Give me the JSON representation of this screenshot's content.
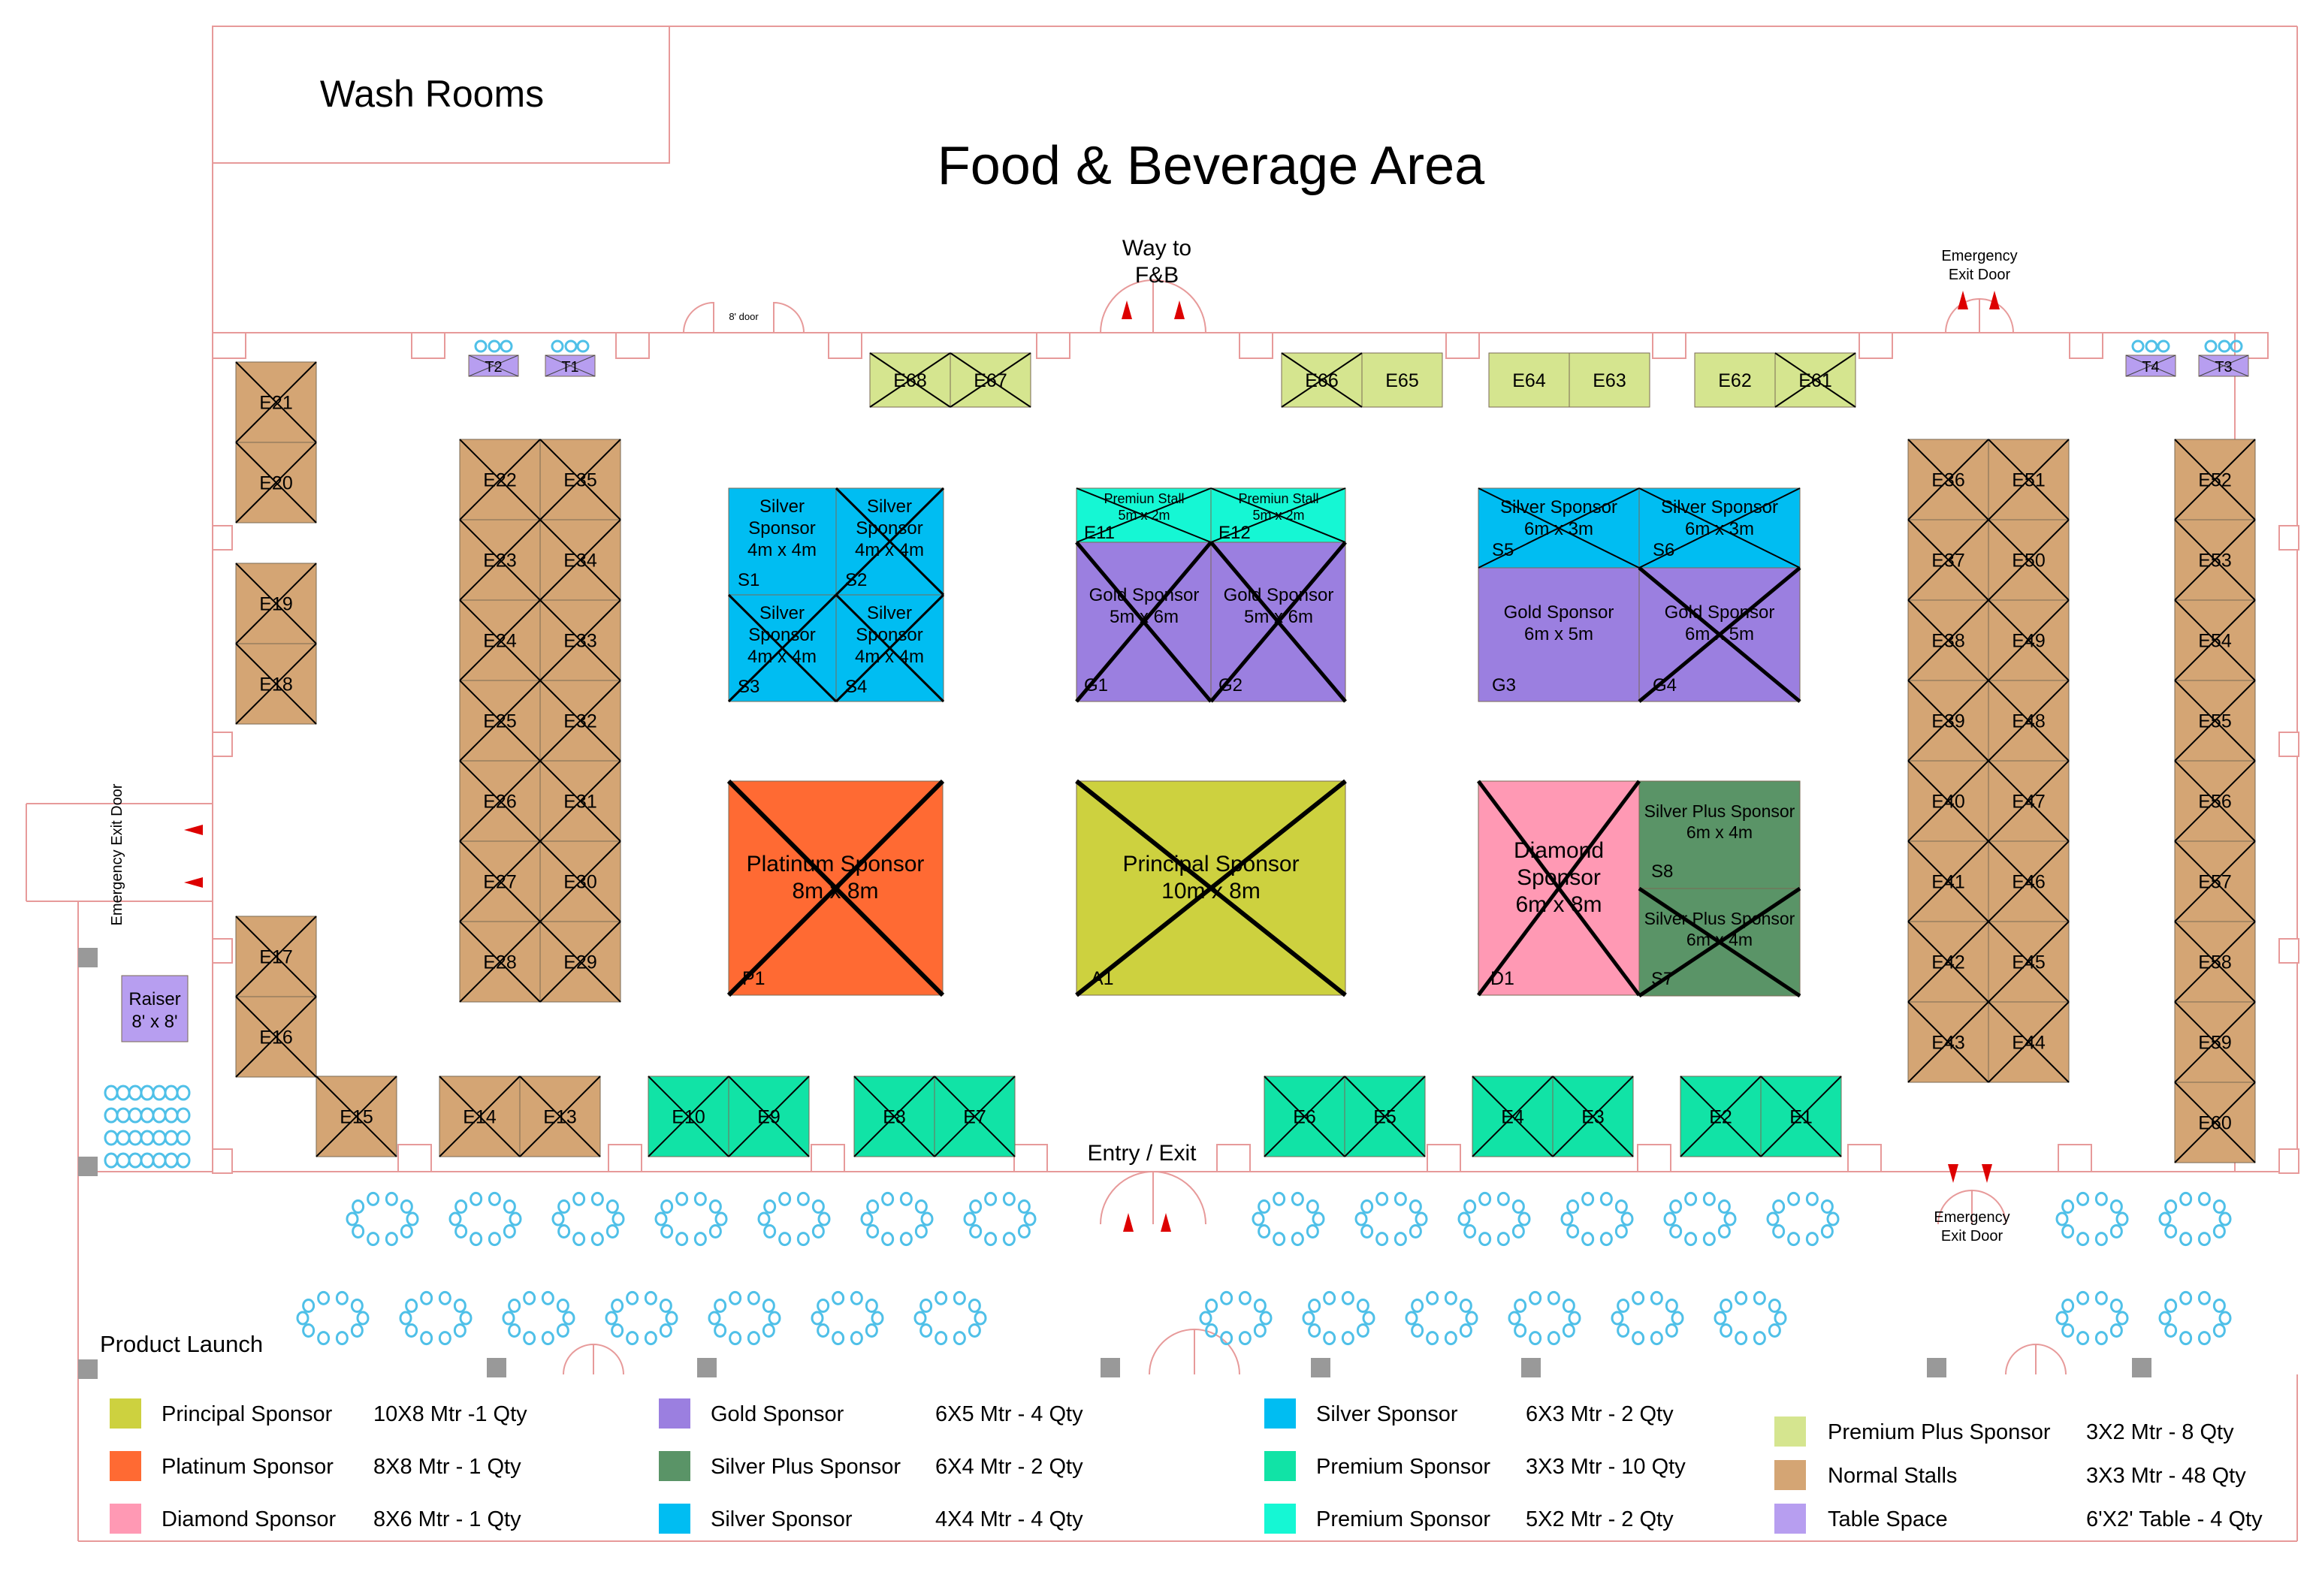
{
  "areas": {
    "washrooms": "Wash Rooms",
    "fnb_title": "Food & Beverage Area",
    "way_to": "Way to",
    "fnb_short": "F&B",
    "door_8ft": "8' door",
    "emergency": "Emergency",
    "exit_door": "Exit Door",
    "emergency_exit_door": "Emergency Exit Door",
    "entry_exit": "Entry / Exit",
    "raiser": "Raiser",
    "raiser_size": "8' x 8'",
    "product_launch": "Product Launch"
  },
  "colors": {
    "principal": "#cdd13f",
    "platinum": "#ff6a33",
    "diamond": "#ff99b4",
    "gold": "#9b7fe0",
    "silver_plus": "#5a9467",
    "silver": "#00bdf2",
    "premium_3x3": "#11e3a6",
    "premium_5x2": "#15f7d4",
    "premium_plus": "#d5e58f",
    "normal": "#d4a574",
    "table": "#b79ef0",
    "wall": "#e79a9a",
    "pillar": "#999999",
    "seat": "#4fc0e8"
  },
  "stalls": {
    "E1": "E1",
    "E2": "E2",
    "E3": "E3",
    "E4": "E4",
    "E5": "E5",
    "E6": "E6",
    "E7": "E7",
    "E8": "E8",
    "E9": "E9",
    "E10": "E10",
    "E11": "E11",
    "E12": "E12",
    "E13": "E13",
    "E14": "E14",
    "E15": "E15",
    "E16": "E16",
    "E17": "E17",
    "E18": "E18",
    "E19": "E19",
    "E20": "E20",
    "E21": "E21",
    "E22": "E22",
    "E23": "E23",
    "E24": "E24",
    "E25": "E25",
    "E26": "E26",
    "E27": "E27",
    "E28": "E28",
    "E29": "E29",
    "E30": "E30",
    "E31": "E31",
    "E32": "E32",
    "E33": "E33",
    "E34": "E34",
    "E35": "E35",
    "E36": "E36",
    "E37": "E37",
    "E38": "E38",
    "E39": "E39",
    "E40": "E40",
    "E41": "E41",
    "E42": "E42",
    "E43": "E43",
    "E44": "E44",
    "E45": "E45",
    "E46": "E46",
    "E47": "E47",
    "E48": "E48",
    "E49": "E49",
    "E50": "E50",
    "E51": "E51",
    "E52": "E52",
    "E53": "E53",
    "E54": "E54",
    "E55": "E55",
    "E56": "E56",
    "E57": "E57",
    "E58": "E58",
    "E59": "E59",
    "E60": "E60",
    "E61": "E61",
    "E62": "E62",
    "E63": "E63",
    "E64": "E64",
    "E65": "E65",
    "E66": "E66",
    "E67": "E67",
    "E68": "E68",
    "T1": "T1",
    "T2": "T2",
    "T3": "T3",
    "T4": "T4"
  },
  "booths": {
    "silver_title": "Silver",
    "sponsor_word": "Sponsor",
    "silver_4x4": "4m x 4m",
    "S1": "S1",
    "S2": "S2",
    "S3": "S3",
    "S4": "S4",
    "S5": "S5",
    "S6": "S6",
    "S7": "S7",
    "S8": "S8",
    "premium_stall": "Premiun Stall",
    "premium_size": "5m x 2m",
    "gold_sponsor": "Gold Sponsor",
    "gold_5x6": "5m x 6m",
    "gold_6x5": "6m x 5m",
    "G1": "G1",
    "G2": "G2",
    "G3": "G3",
    "G4": "G4",
    "silver_sponsor": "Silver Sponsor",
    "silver_6x3": "6m x 3m",
    "platinum_sponsor": "Platinum Sponsor",
    "platinum_size": "8m x 8m",
    "P1": "P1",
    "principal_sponsor": "Principal Sponsor",
    "principal_size": "10m x 8m",
    "A1": "A1",
    "diamond_word": "Diamond",
    "diamond_size": "6m x 8m",
    "D1": "D1",
    "silver_plus_sponsor": "Silver Plus Sponsor",
    "silver_plus_size": "6m x 4m"
  },
  "legend": [
    {
      "name": "Principal Sponsor",
      "spec": "10X8 Mtr -1 Qty",
      "color": "#cdd13f"
    },
    {
      "name": "Platinum Sponsor",
      "spec": "8X8 Mtr - 1 Qty",
      "color": "#ff6a33"
    },
    {
      "name": "Diamond Sponsor",
      "spec": "8X6 Mtr - 1 Qty",
      "color": "#ff99b4"
    },
    {
      "name": "Gold Sponsor",
      "spec": "6X5 Mtr - 4 Qty",
      "color": "#9b7fe0"
    },
    {
      "name": "Silver Plus Sponsor",
      "spec": "6X4 Mtr - 2 Qty",
      "color": "#5a9467"
    },
    {
      "name": "Silver Sponsor",
      "spec": "4X4 Mtr - 4 Qty",
      "color": "#00bdf2"
    },
    {
      "name": "Silver Sponsor",
      "spec": "6X3 Mtr - 2 Qty",
      "color": "#00bdf2"
    },
    {
      "name": "Premium Sponsor",
      "spec": "3X3 Mtr - 10 Qty",
      "color": "#11e3a6"
    },
    {
      "name": "Premium Sponsor",
      "spec": "5X2 Mtr - 2 Qty",
      "color": "#15f7d4"
    },
    {
      "name": "Premium Plus Sponsor",
      "spec": "3X2 Mtr - 8 Qty",
      "color": "#d5e58f"
    },
    {
      "name": "Normal Stalls",
      "spec": "3X3 Mtr - 48 Qty",
      "color": "#d4a574"
    },
    {
      "name": "Table Space",
      "spec": "6'X2' Table - 4 Qty",
      "color": "#b79ef0"
    }
  ]
}
